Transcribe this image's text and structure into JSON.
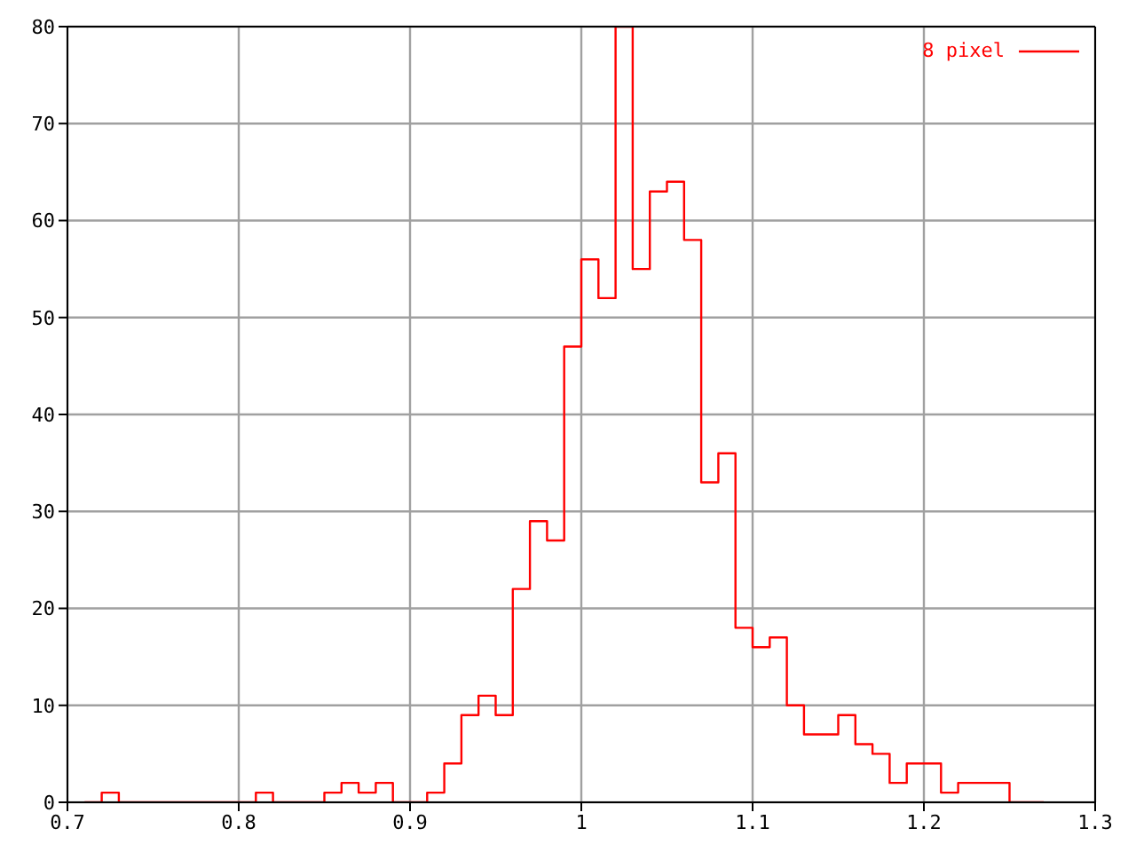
{
  "chart_data": {
    "type": "histogram",
    "bins": [
      0.71,
      0.72,
      0.73,
      0.74,
      0.75,
      0.76,
      0.77,
      0.78,
      0.79,
      0.8,
      0.81,
      0.82,
      0.83,
      0.84,
      0.85,
      0.86,
      0.87,
      0.88,
      0.89,
      0.9,
      0.91,
      0.92,
      0.93,
      0.94,
      0.95,
      0.96,
      0.97,
      0.98,
      0.99,
      1.0,
      1.01,
      1.02,
      1.03,
      1.04,
      1.05,
      1.06,
      1.07,
      1.08,
      1.09,
      1.1,
      1.11,
      1.12,
      1.13,
      1.14,
      1.15,
      1.16,
      1.17,
      1.18,
      1.19,
      1.2,
      1.21,
      1.22,
      1.23,
      1.24,
      1.25,
      1.26,
      1.27
    ],
    "series": [
      {
        "name": "8 pixel",
        "color": "#ff0000",
        "values": [
          0,
          1,
          0,
          0,
          0,
          0,
          0,
          0,
          0,
          0,
          1,
          0,
          0,
          0,
          1,
          2,
          1,
          2,
          0,
          0,
          1,
          4,
          9,
          11,
          9,
          22,
          29,
          27,
          47,
          56,
          52,
          80,
          55,
          63,
          64,
          58,
          33,
          36,
          18,
          16,
          17,
          10,
          7,
          7,
          9,
          6,
          5,
          2,
          4,
          4,
          1,
          2,
          2,
          2,
          0,
          0
        ]
      }
    ],
    "xlim": [
      0.7,
      1.3
    ],
    "xticks": [
      0.7,
      0.8,
      0.9,
      1,
      1.1,
      1.2,
      1.3
    ],
    "ylim": [
      0,
      80
    ],
    "yticks": [
      0,
      10,
      20,
      30,
      40,
      50,
      60,
      70,
      80
    ],
    "grid": true,
    "legend": "top right"
  }
}
